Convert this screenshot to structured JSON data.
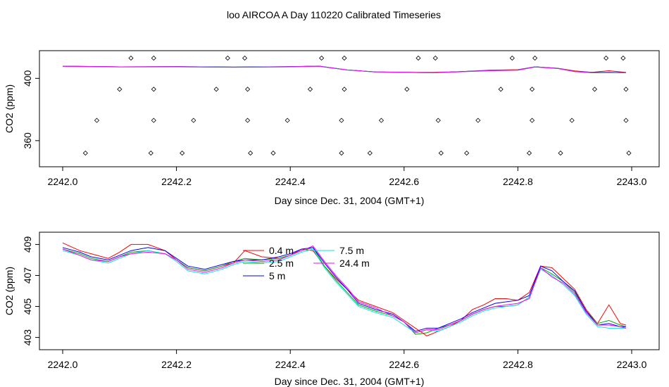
{
  "title": "loo AIRCOA A  Day 110220  Calibrated Timeseries",
  "colors": {
    "0.4 m": "#ff0000",
    "2.5 m": "#00aa00",
    "5 m": "#0000ff",
    "7.5 m": "#00e5e5",
    "24.4 m": "#ff00ff",
    "markers": "#000000"
  },
  "chart_data": [
    {
      "type": "line",
      "ylabel": "CO2 (ppm)",
      "xlabel": "Day since Dec. 31, 2004 (GMT+1)",
      "xlim": [
        2242.0,
        2243.0
      ],
      "ylim": [
        350,
        411
      ],
      "xticks": [
        "2242.0",
        "2242.2",
        "2242.4",
        "2242.6",
        "2242.8",
        "2243.0"
      ],
      "yticks": [
        "360",
        "400"
      ],
      "grid": false,
      "legend": "none",
      "x": [
        2242.0,
        2242.1,
        2242.2,
        2242.3,
        2242.4,
        2242.45,
        2242.5,
        2242.55,
        2242.6,
        2242.65,
        2242.7,
        2242.75,
        2242.8,
        2242.83,
        2242.87,
        2242.9,
        2242.93,
        2242.96,
        2242.99
      ],
      "series": [
        {
          "name": "0.4 m",
          "values": [
            407.8,
            407.4,
            407.5,
            407.2,
            407.5,
            407.8,
            405.4,
            404.1,
            403.9,
            403.8,
            404.3,
            405.2,
            405.6,
            407.4,
            406.5,
            404.8,
            403.9,
            404.9,
            403.8
          ]
        },
        {
          "name": "2.5 m",
          "values": [
            407.8,
            407.4,
            407.5,
            407.2,
            407.5,
            407.8,
            405.4,
            404.1,
            403.9,
            403.6,
            404.3,
            405.0,
            405.4,
            407.4,
            406.5,
            404.4,
            403.8,
            403.9,
            403.7
          ]
        },
        {
          "name": "5 m",
          "values": [
            407.8,
            407.4,
            407.5,
            407.2,
            407.5,
            407.9,
            405.4,
            404.1,
            403.9,
            403.6,
            404.3,
            405.0,
            405.4,
            407.4,
            406.4,
            404.4,
            403.7,
            403.8,
            403.7
          ]
        },
        {
          "name": "7.5 m",
          "values": [
            407.7,
            407.3,
            407.4,
            407.1,
            407.4,
            407.8,
            405.3,
            404.0,
            403.8,
            403.5,
            404.2,
            404.9,
            405.3,
            407.3,
            406.3,
            404.3,
            403.6,
            403.7,
            403.6
          ]
        },
        {
          "name": "24.4 m",
          "values": [
            407.7,
            407.4,
            407.4,
            407.1,
            407.4,
            407.8,
            405.4,
            404.1,
            403.9,
            403.6,
            404.2,
            404.9,
            405.2,
            407.3,
            406.3,
            404.3,
            403.6,
            403.7,
            403.6
          ]
        }
      ],
      "markers": [
        {
          "x": 2242.04,
          "y": 352
        },
        {
          "x": 2242.06,
          "y": 373
        },
        {
          "x": 2242.1,
          "y": 393
        },
        {
          "x": 2242.12,
          "y": 413
        },
        {
          "x": 2242.155,
          "y": 352
        },
        {
          "x": 2242.16,
          "y": 373
        },
        {
          "x": 2242.16,
          "y": 393
        },
        {
          "x": 2242.16,
          "y": 413
        },
        {
          "x": 2242.21,
          "y": 352
        },
        {
          "x": 2242.23,
          "y": 373
        },
        {
          "x": 2242.27,
          "y": 393
        },
        {
          "x": 2242.29,
          "y": 413
        },
        {
          "x": 2242.32,
          "y": 413
        },
        {
          "x": 2242.325,
          "y": 393
        },
        {
          "x": 2242.325,
          "y": 373
        },
        {
          "x": 2242.33,
          "y": 352
        },
        {
          "x": 2242.37,
          "y": 352
        },
        {
          "x": 2242.395,
          "y": 373
        },
        {
          "x": 2242.435,
          "y": 393
        },
        {
          "x": 2242.455,
          "y": 413
        },
        {
          "x": 2242.49,
          "y": 352
        },
        {
          "x": 2242.49,
          "y": 373
        },
        {
          "x": 2242.495,
          "y": 393
        },
        {
          "x": 2242.495,
          "y": 413
        },
        {
          "x": 2242.54,
          "y": 352
        },
        {
          "x": 2242.56,
          "y": 373
        },
        {
          "x": 2242.605,
          "y": 393
        },
        {
          "x": 2242.625,
          "y": 413
        },
        {
          "x": 2242.655,
          "y": 413
        },
        {
          "x": 2242.66,
          "y": 373
        },
        {
          "x": 2242.665,
          "y": 352
        },
        {
          "x": 2242.71,
          "y": 352
        },
        {
          "x": 2242.73,
          "y": 373
        },
        {
          "x": 2242.77,
          "y": 393
        },
        {
          "x": 2242.79,
          "y": 413
        },
        {
          "x": 2242.82,
          "y": 352
        },
        {
          "x": 2242.825,
          "y": 373
        },
        {
          "x": 2242.825,
          "y": 393
        },
        {
          "x": 2242.83,
          "y": 413
        },
        {
          "x": 2242.875,
          "y": 352
        },
        {
          "x": 2242.895,
          "y": 373
        },
        {
          "x": 2242.935,
          "y": 393
        },
        {
          "x": 2242.955,
          "y": 413
        },
        {
          "x": 2242.985,
          "y": 413
        },
        {
          "x": 2242.99,
          "y": 393
        },
        {
          "x": 2242.99,
          "y": 373
        },
        {
          "x": 2242.995,
          "y": 352
        }
      ]
    },
    {
      "type": "line",
      "ylabel": "CO2 (ppm)",
      "xlabel": "Day since Dec. 31, 2004 (GMT+1)",
      "xlim": [
        2242.0,
        2243.0
      ],
      "ylim": [
        402.8,
        409.2
      ],
      "xticks": [
        "2242.0",
        "2242.2",
        "2242.4",
        "2242.6",
        "2242.8",
        "2243.0"
      ],
      "yticks": [
        "403",
        "405",
        "407",
        "409"
      ],
      "grid": false,
      "legend": "inside, center",
      "x": [
        2242.0,
        2242.03,
        2242.05,
        2242.08,
        2242.1,
        2242.12,
        2242.15,
        2242.18,
        2242.2,
        2242.22,
        2242.25,
        2242.28,
        2242.3,
        2242.32,
        2242.35,
        2242.38,
        2242.4,
        2242.42,
        2242.44,
        2242.46,
        2242.48,
        2242.5,
        2242.52,
        2242.55,
        2242.58,
        2242.6,
        2242.62,
        2242.64,
        2242.66,
        2242.68,
        2242.7,
        2242.72,
        2242.74,
        2242.76,
        2242.78,
        2242.8,
        2242.82,
        2242.84,
        2242.86,
        2242.88,
        2242.9,
        2242.92,
        2242.94,
        2242.96,
        2242.98,
        2242.99
      ],
      "series": [
        {
          "name": "0.4 m",
          "values": [
            409.1,
            408.6,
            408.4,
            408.1,
            408.5,
            409.0,
            409.0,
            408.6,
            408.0,
            407.5,
            407.3,
            407.6,
            407.8,
            408.6,
            408.2,
            408.1,
            408.3,
            408.7,
            408.6,
            407.6,
            406.8,
            406.1,
            405.4,
            405.0,
            404.6,
            404.1,
            403.6,
            403.1,
            403.4,
            403.7,
            404.1,
            404.8,
            405.1,
            405.5,
            405.5,
            405.4,
            405.9,
            407.6,
            407.5,
            406.8,
            406.1,
            404.8,
            403.9,
            405.1,
            403.9,
            403.8
          ]
        },
        {
          "name": "2.5 m",
          "values": [
            408.7,
            408.4,
            408.1,
            407.9,
            408.2,
            408.5,
            408.6,
            408.4,
            408.0,
            407.5,
            407.3,
            407.6,
            407.9,
            408.1,
            408.0,
            408.1,
            408.3,
            408.6,
            408.8,
            407.6,
            406.7,
            405.9,
            405.1,
            404.7,
            404.4,
            404.0,
            403.2,
            403.3,
            403.6,
            403.8,
            404.1,
            404.5,
            404.8,
            405.0,
            405.0,
            405.1,
            405.6,
            407.5,
            407.1,
            406.6,
            405.9,
            404.7,
            403.9,
            404.1,
            403.8,
            403.7
          ]
        },
        {
          "name": "5 m",
          "values": [
            408.8,
            408.5,
            408.2,
            408.0,
            408.3,
            408.6,
            408.8,
            408.6,
            408.1,
            407.6,
            407.4,
            407.7,
            407.9,
            408.0,
            408.0,
            408.2,
            408.4,
            408.7,
            408.8,
            407.8,
            406.9,
            406.1,
            405.2,
            404.8,
            404.5,
            404.0,
            403.4,
            403.6,
            403.6,
            403.9,
            404.2,
            404.6,
            404.9,
            405.2,
            405.3,
            405.4,
            405.7,
            407.6,
            407.3,
            406.6,
            406.0,
            404.7,
            403.8,
            403.9,
            403.7,
            403.7
          ]
        },
        {
          "name": "7.5 m",
          "values": [
            408.6,
            408.3,
            408.0,
            407.8,
            408.1,
            408.4,
            408.6,
            408.4,
            407.9,
            407.3,
            407.1,
            407.4,
            407.7,
            407.9,
            407.8,
            407.9,
            408.2,
            408.5,
            408.7,
            407.5,
            406.6,
            405.8,
            405.0,
            404.6,
            404.3,
            403.8,
            403.3,
            403.5,
            403.4,
            403.7,
            404.0,
            404.4,
            404.7,
            404.9,
            405.0,
            405.1,
            405.6,
            407.4,
            407.0,
            406.4,
            405.7,
            404.5,
            403.7,
            403.6,
            403.6,
            403.6
          ]
        },
        {
          "name": "24.4 m",
          "values": [
            408.7,
            408.3,
            408.0,
            407.9,
            408.2,
            408.4,
            408.5,
            408.4,
            408.0,
            407.4,
            407.2,
            407.5,
            407.8,
            408.0,
            407.9,
            408.0,
            408.3,
            408.6,
            408.9,
            407.9,
            407.0,
            406.2,
            405.3,
            404.9,
            404.4,
            404.0,
            403.3,
            403.5,
            403.5,
            403.8,
            404.1,
            404.5,
            404.8,
            405.0,
            405.1,
            405.2,
            405.5,
            407.5,
            406.9,
            406.5,
            405.8,
            404.6,
            403.8,
            403.8,
            403.7,
            403.6
          ]
        }
      ]
    }
  ]
}
